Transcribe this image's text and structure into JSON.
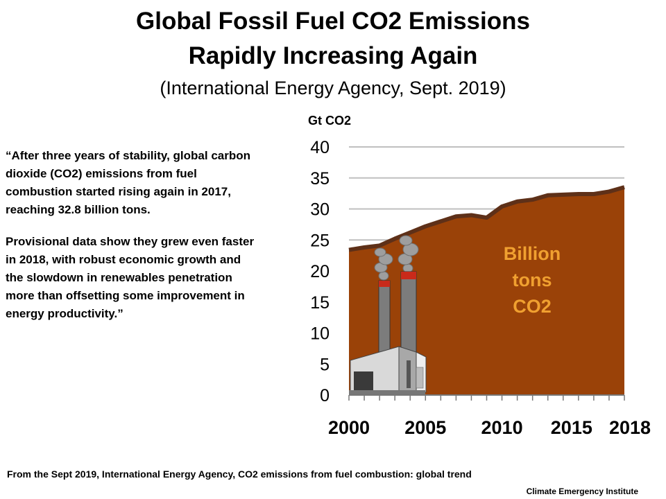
{
  "title": {
    "line1": "Global Fossil Fuel CO2 Emissions",
    "line2": "Rapidly Increasing Again"
  },
  "subtitle": "(International Energy Agency, Sept. 2019)",
  "quote": {
    "p1": "“After three years of stability, global carbon dioxide (CO2) emissions from fuel combustion started rising again in 2017, reaching 32.8 billion tons.",
    "p2": "Provisional data show they grew even faster in 2018, with robust economic growth and the slowdown in renewables penetration more than offsetting some improvement in energy productivity.”"
  },
  "footer": {
    "source": "From the Sept 2019, International Energy Agency, CO2 emissions from fuel combustion: global trend",
    "credit": "Climate Emergency Institute"
  },
  "colors": {
    "area_fill": "#9a4208",
    "area_line": "#5e3018",
    "annotation": "#f0a030",
    "grid": "#bfbfbf"
  },
  "chart_data": {
    "type": "area",
    "ylabel": "Gt CO2",
    "ylim": [
      0,
      40
    ],
    "yticks": [
      0,
      5,
      10,
      15,
      20,
      25,
      30,
      35,
      40
    ],
    "xlim": [
      2000,
      2018
    ],
    "xticks": [
      2000,
      2005,
      2010,
      2015,
      2018
    ],
    "grid": true,
    "annotation": [
      "Billion",
      "tons",
      "CO2"
    ],
    "series": [
      {
        "x": [
          2000,
          2001,
          2002,
          2003,
          2004,
          2005,
          2006,
          2007,
          2008,
          2009,
          2010,
          2011,
          2012,
          2013,
          2014,
          2015,
          2016,
          2017,
          2018
        ],
        "values": [
          23.4,
          23.8,
          24.1,
          25.2,
          26.2,
          27.2,
          28.0,
          28.8,
          29.0,
          28.6,
          30.4,
          31.2,
          31.5,
          32.2,
          32.3,
          32.4,
          32.4,
          32.8,
          33.5
        ]
      }
    ]
  }
}
